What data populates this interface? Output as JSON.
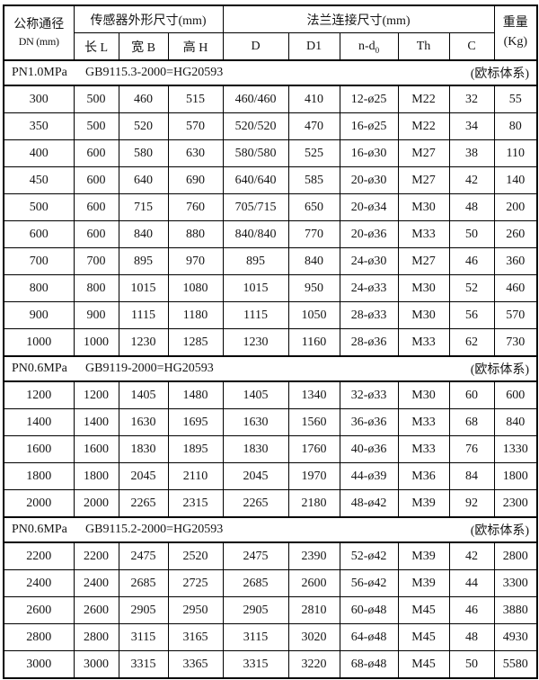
{
  "table": {
    "header": {
      "dn_line1": "公称通径",
      "dn_line2": "DN (mm)",
      "group_sensor": "传感器外形尺寸(mm)",
      "group_flange": "法兰连接尺寸(mm)",
      "weight_line1": "重量",
      "weight_line2": "(Kg)",
      "col_length": "长 L",
      "col_width": "宽 B",
      "col_height": "高 H",
      "col_d": "D",
      "col_d1": "D1",
      "col_nd0_main": "n-d",
      "col_nd0_sub": "0",
      "col_th": "Th",
      "col_c": "C"
    },
    "sections": [
      {
        "pressure": "PN1.0MPa",
        "standard": "GB9115.3-2000=HG20593",
        "note": "(欧标体系)",
        "rows": [
          [
            "300",
            "500",
            "460",
            "515",
            "460/460",
            "410",
            "12-ø25",
            "M22",
            "32",
            "55"
          ],
          [
            "350",
            "500",
            "520",
            "570",
            "520/520",
            "470",
            "16-ø25",
            "M22",
            "34",
            "80"
          ],
          [
            "400",
            "600",
            "580",
            "630",
            "580/580",
            "525",
            "16-ø30",
            "M27",
            "38",
            "110"
          ],
          [
            "450",
            "600",
            "640",
            "690",
            "640/640",
            "585",
            "20-ø30",
            "M27",
            "42",
            "140"
          ],
          [
            "500",
            "600",
            "715",
            "760",
            "705/715",
            "650",
            "20-ø34",
            "M30",
            "48",
            "200"
          ],
          [
            "600",
            "600",
            "840",
            "880",
            "840/840",
            "770",
            "20-ø36",
            "M33",
            "50",
            "260"
          ],
          [
            "700",
            "700",
            "895",
            "970",
            "895",
            "840",
            "24-ø30",
            "M27",
            "46",
            "360"
          ],
          [
            "800",
            "800",
            "1015",
            "1080",
            "1015",
            "950",
            "24-ø33",
            "M30",
            "52",
            "460"
          ],
          [
            "900",
            "900",
            "1115",
            "1180",
            "1115",
            "1050",
            "28-ø33",
            "M30",
            "56",
            "570"
          ],
          [
            "1000",
            "1000",
            "1230",
            "1285",
            "1230",
            "1160",
            "28-ø36",
            "M33",
            "62",
            "730"
          ]
        ]
      },
      {
        "pressure": "PN0.6MPa",
        "standard": "GB9119-2000=HG20593",
        "note": "(欧标体系)",
        "rows": [
          [
            "1200",
            "1200",
            "1405",
            "1480",
            "1405",
            "1340",
            "32-ø33",
            "M30",
            "60",
            "600"
          ],
          [
            "1400",
            "1400",
            "1630",
            "1695",
            "1630",
            "1560",
            "36-ø36",
            "M33",
            "68",
            "840"
          ],
          [
            "1600",
            "1600",
            "1830",
            "1895",
            "1830",
            "1760",
            "40-ø36",
            "M33",
            "76",
            "1330"
          ],
          [
            "1800",
            "1800",
            "2045",
            "2110",
            "2045",
            "1970",
            "44-ø39",
            "M36",
            "84",
            "1800"
          ],
          [
            "2000",
            "2000",
            "2265",
            "2315",
            "2265",
            "2180",
            "48-ø42",
            "M39",
            "92",
            "2300"
          ]
        ]
      },
      {
        "pressure": "PN0.6MPa",
        "standard": "GB9115.2-2000=HG20593",
        "note": "(欧标体系)",
        "rows": [
          [
            "2200",
            "2200",
            "2475",
            "2520",
            "2475",
            "2390",
            "52-ø42",
            "M39",
            "42",
            "2800"
          ],
          [
            "2400",
            "2400",
            "2685",
            "2725",
            "2685",
            "2600",
            "56-ø42",
            "M39",
            "44",
            "3300"
          ],
          [
            "2600",
            "2600",
            "2905",
            "2950",
            "2905",
            "2810",
            "60-ø48",
            "M45",
            "46",
            "3880"
          ],
          [
            "2800",
            "2800",
            "3115",
            "3165",
            "3115",
            "3020",
            "64-ø48",
            "M45",
            "48",
            "4930"
          ],
          [
            "3000",
            "3000",
            "3315",
            "3365",
            "3315",
            "3220",
            "68-ø48",
            "M45",
            "50",
            "5580"
          ]
        ]
      }
    ]
  }
}
